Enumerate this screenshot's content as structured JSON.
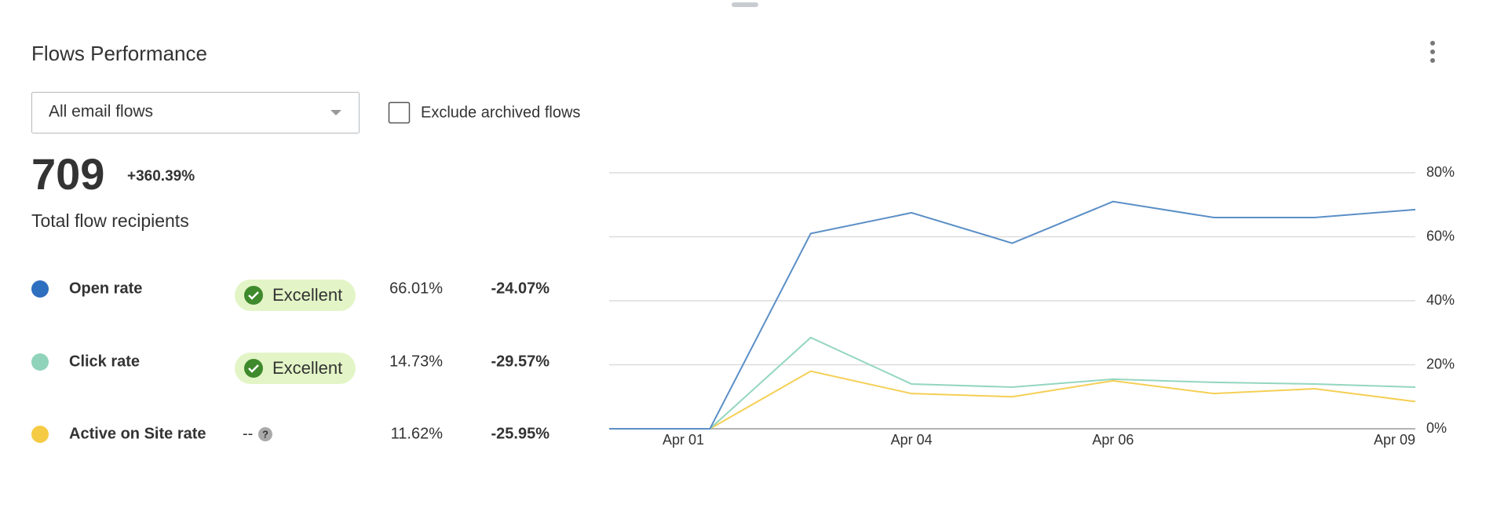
{
  "header": {
    "title": "Flows Performance",
    "dropdown": "All email flows",
    "checkbox_label": "Exclude archived flows"
  },
  "summary": {
    "total": "709",
    "change": "+360.39%",
    "label": "Total flow recipients"
  },
  "metrics": [
    {
      "name": "Open rate",
      "color": "#2f6fbf",
      "badge": "Excellent",
      "value": "66.01%",
      "change": "-24.07%"
    },
    {
      "name": "Click rate",
      "color": "#8fd3bb",
      "badge": "Excellent",
      "value": "14.73%",
      "change": "-29.57%"
    },
    {
      "name": "Active on Site rate",
      "color": "#f5cb45",
      "badge": "--",
      "value": "11.62%",
      "change": "-25.95%"
    }
  ],
  "chart_data": {
    "type": "line",
    "categories": [
      "Apr 01",
      null,
      null,
      "Apr 04",
      null,
      "Apr 06",
      null,
      null,
      "Apr 09"
    ],
    "series": [
      {
        "name": "Open rate",
        "color": "#5b8fc6",
        "values": [
          0,
          0,
          61,
          67.5,
          58,
          71,
          66,
          66,
          68.5
        ]
      },
      {
        "name": "Click rate",
        "color": "#94d6c0",
        "values": [
          0,
          0,
          28.5,
          14,
          13,
          15.5,
          14.5,
          14,
          13
        ]
      },
      {
        "name": "Active on Site rate",
        "color": "#f5cf55",
        "values": [
          0,
          0,
          18,
          11,
          10,
          15,
          11,
          12.5,
          8.5
        ]
      }
    ],
    "ylim": [
      0,
      80
    ],
    "yticks": [
      {
        "value": 0,
        "label": "0%"
      },
      {
        "value": 20,
        "label": "20%"
      },
      {
        "value": 40,
        "label": "40%"
      },
      {
        "value": 60,
        "label": "60%"
      },
      {
        "value": 80,
        "label": "80%"
      }
    ],
    "grid": true
  }
}
